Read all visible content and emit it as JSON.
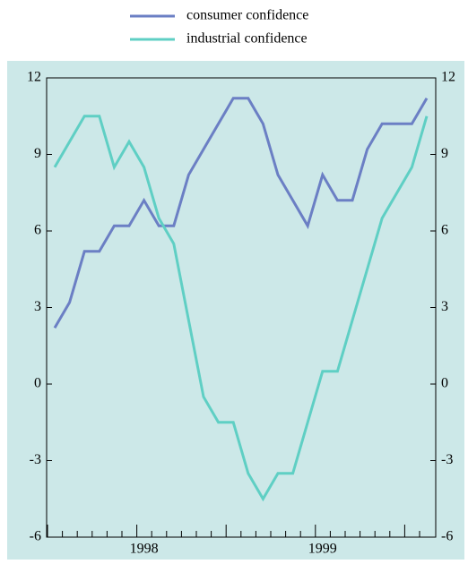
{
  "chart_data": {
    "type": "line",
    "categories": [
      null,
      null,
      null,
      null,
      null,
      null,
      "1998",
      null,
      null,
      null,
      null,
      null,
      null,
      null,
      null,
      null,
      null,
      null,
      "1999",
      null,
      null,
      null,
      null,
      null,
      null,
      null
    ],
    "series": [
      {
        "name": "consumer confidence",
        "color": "#6b7fc4",
        "values": [
          2.2,
          3.2,
          5.2,
          5.2,
          6.2,
          6.2,
          7.2,
          6.2,
          6.2,
          8.2,
          9.2,
          10.2,
          11.2,
          11.2,
          10.2,
          8.2,
          7.2,
          6.2,
          8.2,
          7.2,
          7.2,
          9.2,
          10.2,
          10.2,
          10.2,
          11.2
        ]
      },
      {
        "name": "industrial confidence",
        "color": "#5fcfc4",
        "values": [
          8.5,
          9.5,
          10.5,
          10.5,
          8.5,
          9.5,
          8.5,
          6.5,
          5.5,
          2.5,
          -0.5,
          -1.5,
          -1.5,
          -3.5,
          -4.5,
          -3.5,
          -3.5,
          -1.5,
          0.5,
          0.5,
          2.5,
          4.5,
          6.5,
          7.5,
          8.5,
          10.5
        ]
      }
    ],
    "ylim": [
      -6,
      12
    ],
    "yticks": [
      -6,
      -3,
      0,
      3,
      6,
      9,
      12
    ],
    "y2lim": [
      -6,
      12
    ],
    "y2ticks": [
      -6,
      -3,
      0,
      3,
      6,
      9,
      12
    ],
    "legend": "top"
  }
}
